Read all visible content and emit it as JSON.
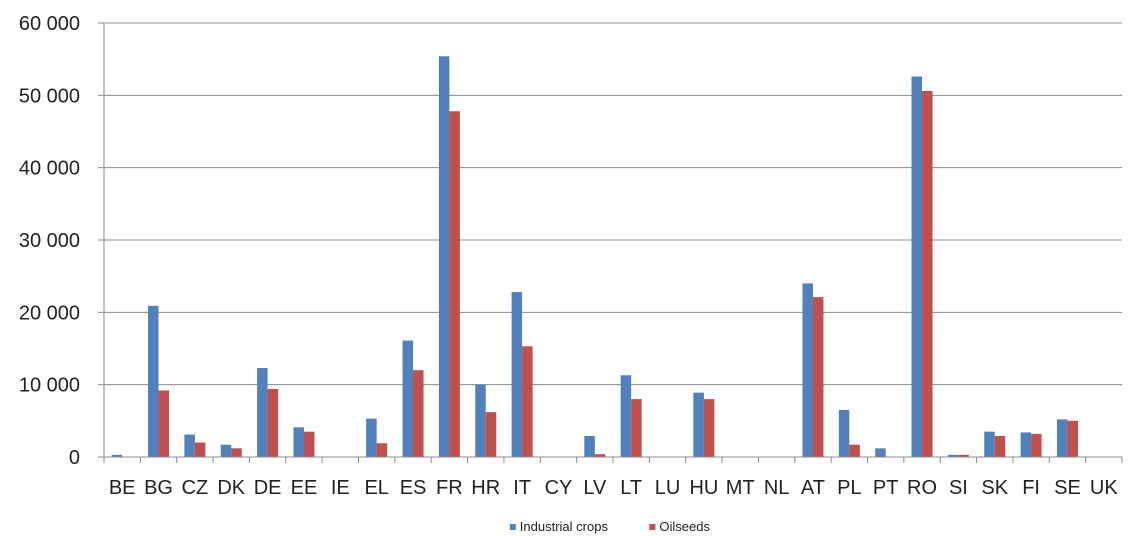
{
  "chart_data": {
    "type": "bar",
    "categories": [
      "BE",
      "BG",
      "CZ",
      "DK",
      "DE",
      "EE",
      "IE",
      "EL",
      "ES",
      "FR",
      "HR",
      "IT",
      "CY",
      "LV",
      "LT",
      "LU",
      "HU",
      "MT",
      "NL",
      "AT",
      "PL",
      "PT",
      "RO",
      "SI",
      "SK",
      "FI",
      "SE",
      "UK"
    ],
    "series": [
      {
        "name": "Industrial crops",
        "color": "#4F81BD",
        "values": [
          300,
          20900,
          3100,
          1700,
          12300,
          4100,
          0,
          5300,
          16100,
          55400,
          10000,
          22800,
          0,
          2900,
          11300,
          0,
          8900,
          0,
          0,
          24000,
          6500,
          1200,
          52600,
          300,
          3500,
          3400,
          5200,
          0
        ]
      },
      {
        "name": "Oilseeds",
        "color": "#C0504D",
        "values": [
          0,
          9200,
          2000,
          1200,
          9400,
          3500,
          0,
          1900,
          12000,
          47800,
          6200,
          15300,
          0,
          400,
          8000,
          0,
          8000,
          0,
          0,
          22100,
          1700,
          0,
          50600,
          300,
          2900,
          3200,
          5000,
          0
        ]
      }
    ],
    "ylim": [
      0,
      60000
    ],
    "yticks": [
      "0",
      "10 000",
      "20 000",
      "30 000",
      "40 000",
      "50 000",
      "60 000"
    ],
    "grid": true,
    "legend_position": "bottom-center"
  }
}
